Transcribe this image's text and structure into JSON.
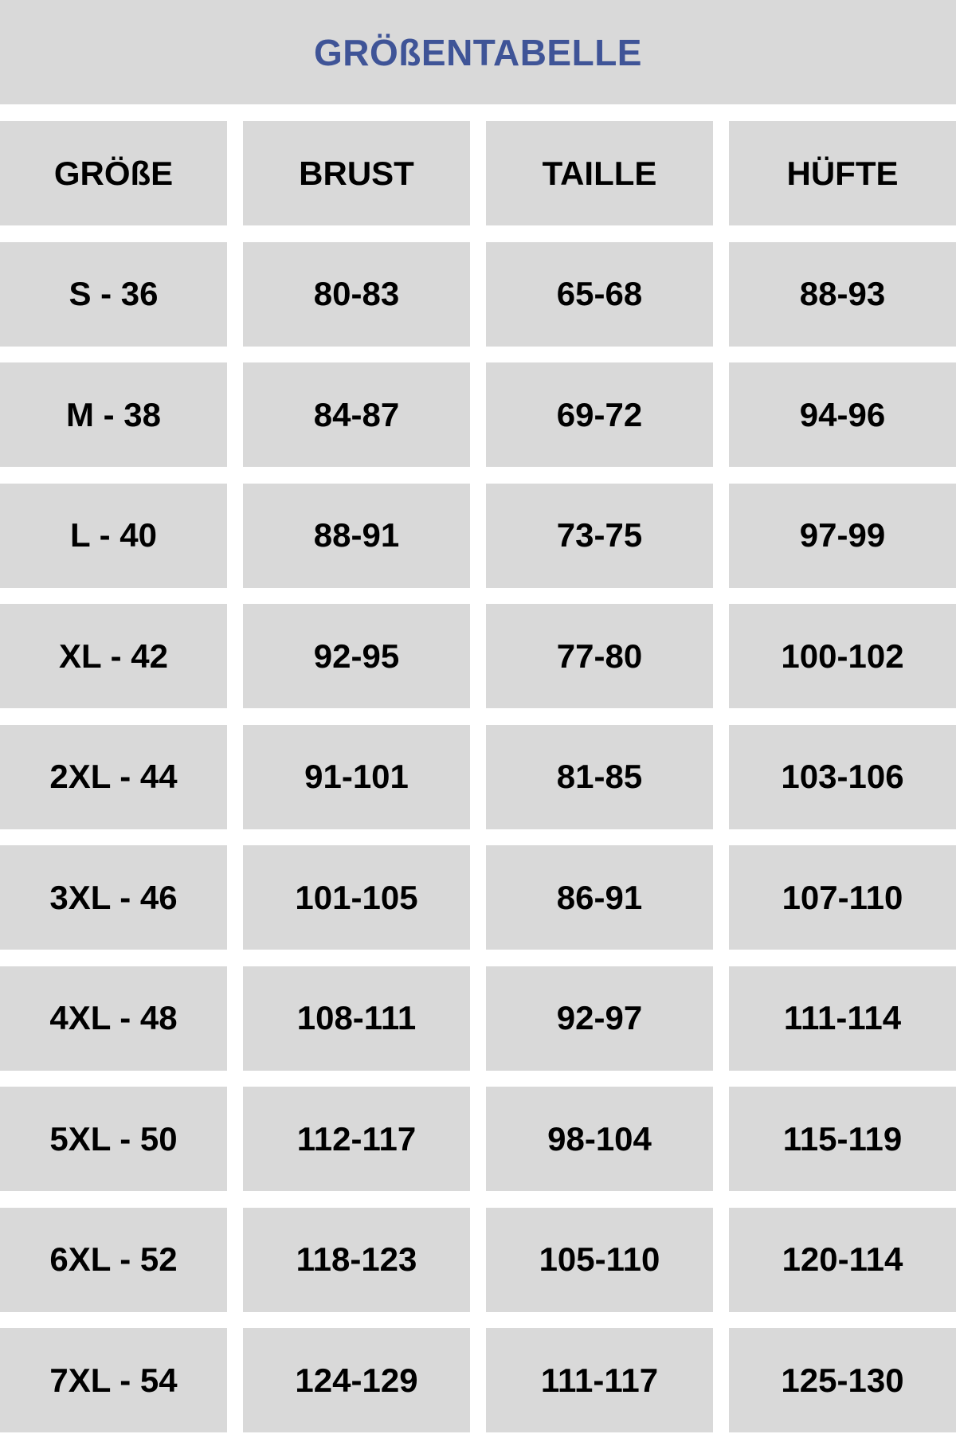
{
  "title": "GRÖßENTABELLE",
  "colors": {
    "title": "#3f5497",
    "cell_background": "#d9d9d9",
    "text": "#000000"
  },
  "table": {
    "headers": [
      "GRÖßE",
      "BRUST",
      "TAILLE",
      "HÜFTE"
    ],
    "rows": [
      [
        "S - 36",
        "80-83",
        "65-68",
        "88-93"
      ],
      [
        "M - 38",
        "84-87",
        "69-72",
        "94-96"
      ],
      [
        "L - 40",
        "88-91",
        "73-75",
        "97-99"
      ],
      [
        "XL - 42",
        "92-95",
        "77-80",
        "100-102"
      ],
      [
        "2XL - 44",
        "91-101",
        "81-85",
        "103-106"
      ],
      [
        "3XL - 46",
        "101-105",
        "86-91",
        "107-110"
      ],
      [
        "4XL - 48",
        "108-111",
        "92-97",
        "111-114"
      ],
      [
        "5XL - 50",
        "112-117",
        "98-104",
        "115-119"
      ],
      [
        "6XL - 52",
        "118-123",
        "105-110",
        "120-114"
      ],
      [
        "7XL - 54",
        "124-129",
        "111-117",
        "125-130"
      ]
    ]
  }
}
